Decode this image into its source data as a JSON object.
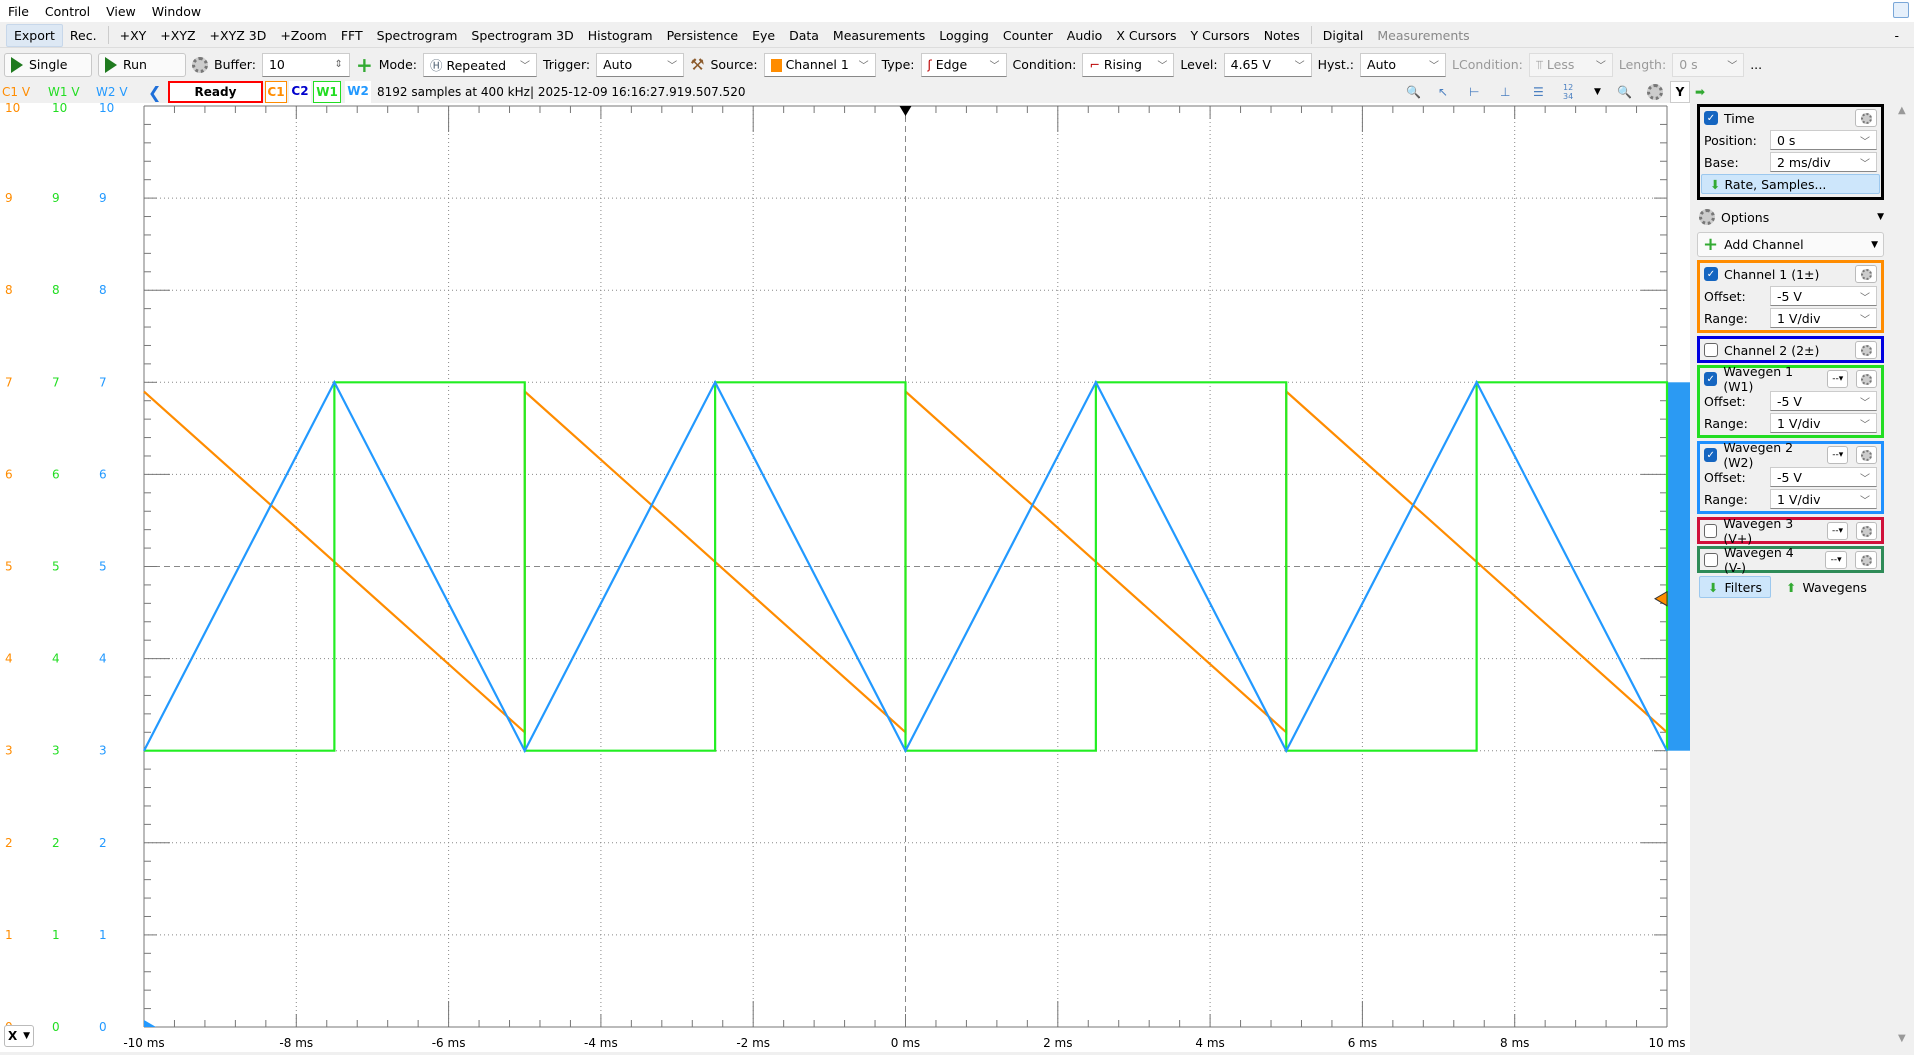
{
  "menu": [
    "File",
    "Control",
    "View",
    "Window"
  ],
  "tabs": [
    "Export",
    "Rec.",
    "+XY",
    "+XYZ",
    "+XYZ 3D",
    "+Zoom",
    "FFT",
    "Spectrogram",
    "Spectrogram 3D",
    "Histogram",
    "Persistence",
    "Eye",
    "Data",
    "Measurements",
    "Logging",
    "Counter",
    "Audio",
    "X Cursors",
    "Y Cursors",
    "Notes",
    "Digital",
    "Measurements"
  ],
  "tabs_minimize": "-",
  "controls": {
    "single": "Single",
    "run": "Run",
    "buffer_label": "Buffer:",
    "buffer_value": "10",
    "mode_label": "Mode:",
    "mode_value": "Repeated",
    "trigger_label": "Trigger:",
    "trigger_value": "Auto",
    "source_label": "Source:",
    "source_value": "Channel 1",
    "type_label": "Type:",
    "type_value": "Edge",
    "condition_label": "Condition:",
    "condition_value": "Rising",
    "level_label": "Level:",
    "level_value": "4.65 V",
    "hyst_label": "Hyst.:",
    "hyst_value": "Auto",
    "lcondition_label": "LCondition:",
    "lcondition_value": "Less",
    "length_label": "Length:",
    "length_value": "0 s",
    "more": "..."
  },
  "info": {
    "axis_c1": "C1 V",
    "axis_w1": "W1 V",
    "axis_w2": "W2 V",
    "status": "Ready",
    "chips": [
      "C1",
      "C2",
      "W1",
      "W2"
    ],
    "samples": "8192 samples at 400 kHz",
    "timestamp": "| 2025-12-09 16:16:27.919.507.520",
    "y_button": "Y",
    "x_button": "X"
  },
  "colors": {
    "c1": "#ff8c00",
    "w1": "#22ee22",
    "w2": "#2299ff",
    "c2": "#0000cc",
    "status_border": "#ff0000"
  },
  "panel": {
    "time": {
      "title": "Time",
      "position_label": "Position:",
      "position": "0 s",
      "base_label": "Base:",
      "base": "2 ms/div",
      "rate": "Rate, Samples..."
    },
    "options": "Options",
    "add_channel": "Add Channel",
    "channels": [
      {
        "title": "Channel 1 (1±)",
        "checked": true,
        "color": "#ff8c00",
        "offset": "-5 V",
        "range": "1 V/div",
        "dash": false
      },
      {
        "title": "Channel 2 (2±)",
        "checked": false,
        "color": "#0000e0",
        "dash": false
      },
      {
        "title": "Wavegen 1 (W1)",
        "checked": true,
        "color": "#22dd22",
        "offset": "-5 V",
        "range": "1 V/div",
        "dash": true
      },
      {
        "title": "Wavegen 2 (W2)",
        "checked": true,
        "color": "#1e90ff",
        "offset": "-5 V",
        "range": "1 V/div",
        "dash": true
      },
      {
        "title": "Wavegen 3 (V+)",
        "checked": false,
        "color": "#d0103a",
        "dash": true
      },
      {
        "title": "Wavegen 4 (V-)",
        "checked": false,
        "color": "#2e8b57",
        "dash": true
      }
    ],
    "offset_label": "Offset:",
    "range_label": "Range:",
    "filters": "Filters",
    "wavegens": "Wavegens"
  },
  "chart_data": {
    "type": "line",
    "xlabel": "",
    "ylabel": "",
    "xlim": [
      -10,
      10
    ],
    "ylim": [
      0,
      10
    ],
    "x_ticks": [
      "-10 ms",
      "-8 ms",
      "-6 ms",
      "-4 ms",
      "-2 ms",
      "0 ms",
      "2 ms",
      "4 ms",
      "6 ms",
      "8 ms",
      "10 ms"
    ],
    "y_ticks": [
      10,
      9,
      8,
      7,
      6,
      5,
      4,
      3,
      2,
      1,
      0
    ],
    "grid": true,
    "trigger_level": 4.65,
    "trigger_time": 0,
    "series": [
      {
        "name": "C1",
        "color": "#ff8c00",
        "x": [
          -10,
          -5,
          -5,
          0,
          0,
          5,
          5,
          10
        ],
        "y": [
          6.9,
          3.2,
          6.9,
          3.2,
          6.9,
          3.2,
          6.9,
          3.2
        ]
      },
      {
        "name": "W1",
        "color": "#22ee22",
        "x": [
          -10,
          -7.5,
          -7.5,
          -5,
          -5,
          -2.5,
          -2.5,
          0,
          0,
          2.5,
          2.5,
          5,
          5,
          7.5,
          7.5,
          10,
          10
        ],
        "y": [
          3,
          3,
          7,
          7,
          3,
          3,
          7,
          7,
          3,
          3,
          7,
          7,
          3,
          3,
          7,
          7,
          3
        ]
      },
      {
        "name": "W2",
        "color": "#2299ff",
        "x": [
          -10,
          -7.5,
          -5,
          -2.5,
          0,
          2.5,
          5,
          7.5,
          10
        ],
        "y": [
          3,
          7,
          3,
          7,
          3,
          7,
          3,
          7,
          3
        ]
      }
    ]
  }
}
